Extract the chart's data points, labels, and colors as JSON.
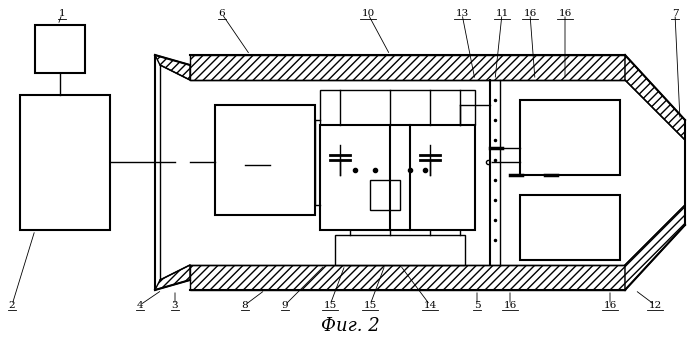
{
  "title": "Фиг. 2",
  "title_fontsize": 13,
  "background_color": "#ffffff",
  "figsize": [
    6.99,
    3.46
  ],
  "dpi": 100
}
